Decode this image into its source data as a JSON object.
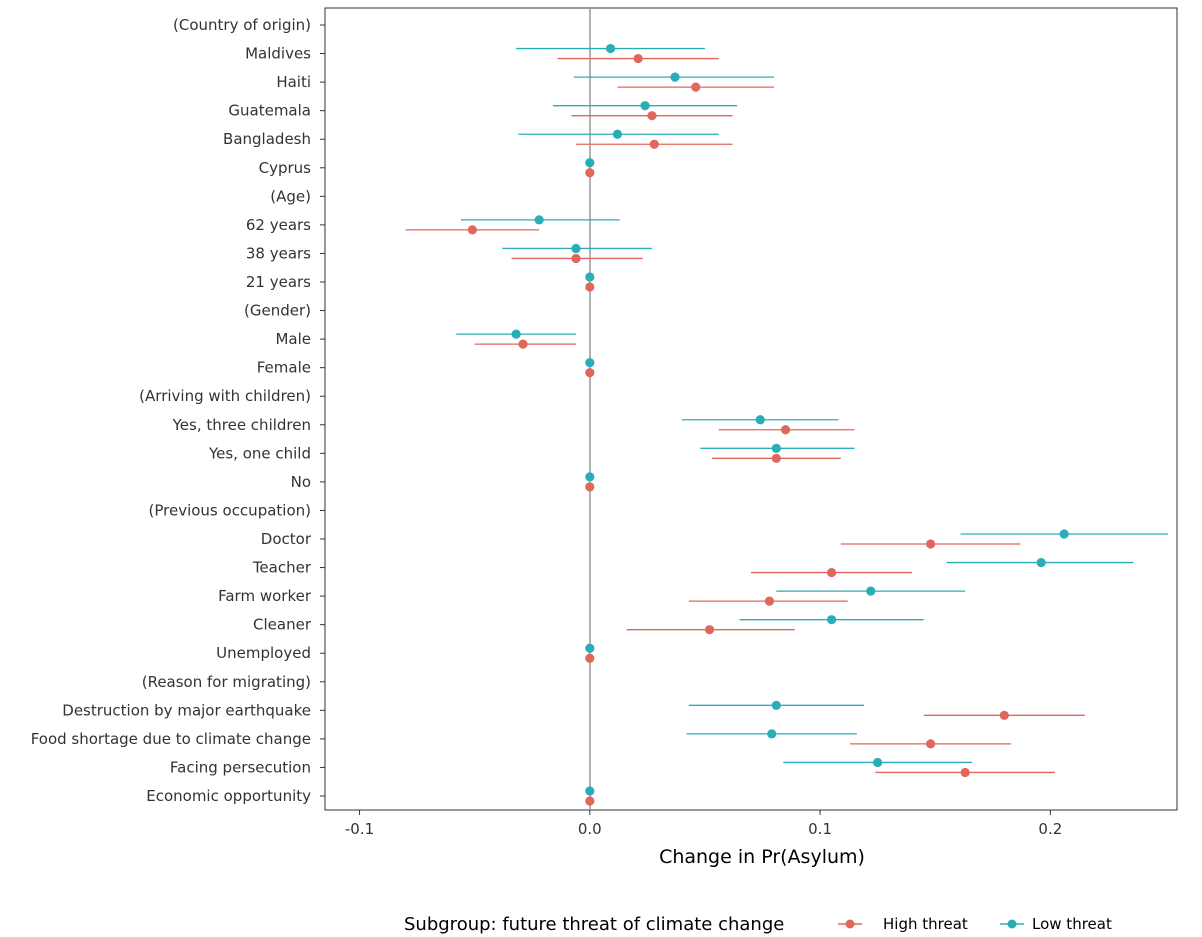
{
  "chart_data": {
    "type": "scatter",
    "subtype": "coefficient-plot",
    "xlabel": "Change in Pr(Asylum)",
    "xlim": [
      -0.115,
      0.255
    ],
    "x_ticks": [
      -0.1,
      0.0,
      0.1,
      0.2
    ],
    "x_tick_labels": [
      "-0.1",
      "0.0",
      "0.1",
      "0.2"
    ],
    "reference_line_x": 0,
    "grid": false,
    "legend": {
      "title": "Subgroup: future threat of climate change",
      "placement": "bottom",
      "entries": [
        "High threat",
        "Low threat"
      ]
    },
    "categories": [
      "(Country of origin)",
      "Maldives",
      "Haiti",
      "Guatemala",
      "Bangladesh",
      "Cyprus",
      "(Age)",
      "62 years",
      "38 years",
      "21 years",
      "(Gender)",
      "Male",
      "Female",
      "(Arriving with children)",
      "Yes, three children",
      "Yes, one child",
      "No",
      "(Previous occupation)",
      "Doctor",
      "Teacher",
      "Farm worker",
      "Cleaner",
      "Unemployed",
      "(Reason for migrating)",
      "Destruction by major earthquake",
      "Food shortage due to climate change",
      "Facing persecution",
      "Economic opportunity"
    ],
    "series": [
      {
        "name": "High threat",
        "color": "#E0675C",
        "estimates": [
          null,
          0.021,
          0.046,
          0.027,
          0.028,
          0.0,
          null,
          -0.051,
          -0.006,
          0.0,
          null,
          -0.029,
          0.0,
          null,
          0.085,
          0.081,
          0.0,
          null,
          0.148,
          0.105,
          0.078,
          0.052,
          0.0,
          null,
          0.18,
          0.148,
          0.163,
          0.0
        ],
        "ci_low": [
          null,
          -0.014,
          0.012,
          -0.008,
          -0.006,
          0.0,
          null,
          -0.08,
          -0.034,
          0.0,
          null,
          -0.05,
          0.0,
          null,
          0.056,
          0.053,
          0.0,
          null,
          0.109,
          0.07,
          0.043,
          0.016,
          0.0,
          null,
          0.145,
          0.113,
          0.124,
          0.0
        ],
        "ci_high": [
          null,
          0.056,
          0.08,
          0.062,
          0.062,
          0.0,
          null,
          -0.022,
          0.023,
          0.0,
          null,
          -0.006,
          0.0,
          null,
          0.115,
          0.109,
          0.0,
          null,
          0.187,
          0.14,
          0.112,
          0.089,
          0.0,
          null,
          0.215,
          0.183,
          0.202,
          0.0
        ]
      },
      {
        "name": "Low threat",
        "color": "#2AADB6",
        "estimates": [
          null,
          0.009,
          0.037,
          0.024,
          0.012,
          0.0,
          null,
          -0.022,
          -0.006,
          0.0,
          null,
          -0.032,
          0.0,
          null,
          0.074,
          0.081,
          0.0,
          null,
          0.206,
          0.196,
          0.122,
          0.105,
          0.0,
          null,
          0.081,
          0.079,
          0.125,
          0.0
        ],
        "ci_low": [
          null,
          -0.032,
          -0.007,
          -0.016,
          -0.031,
          0.0,
          null,
          -0.056,
          -0.038,
          0.0,
          null,
          -0.058,
          0.0,
          null,
          0.04,
          0.048,
          0.0,
          null,
          0.161,
          0.155,
          0.081,
          0.065,
          0.0,
          null,
          0.043,
          0.042,
          0.084,
          0.0
        ],
        "ci_high": [
          null,
          0.05,
          0.08,
          0.064,
          0.056,
          0.0,
          null,
          0.013,
          0.027,
          0.0,
          null,
          -0.006,
          0.0,
          null,
          0.108,
          0.115,
          0.0,
          null,
          0.251,
          0.236,
          0.163,
          0.145,
          0.0,
          null,
          0.119,
          0.116,
          0.166,
          0.0
        ]
      }
    ]
  }
}
